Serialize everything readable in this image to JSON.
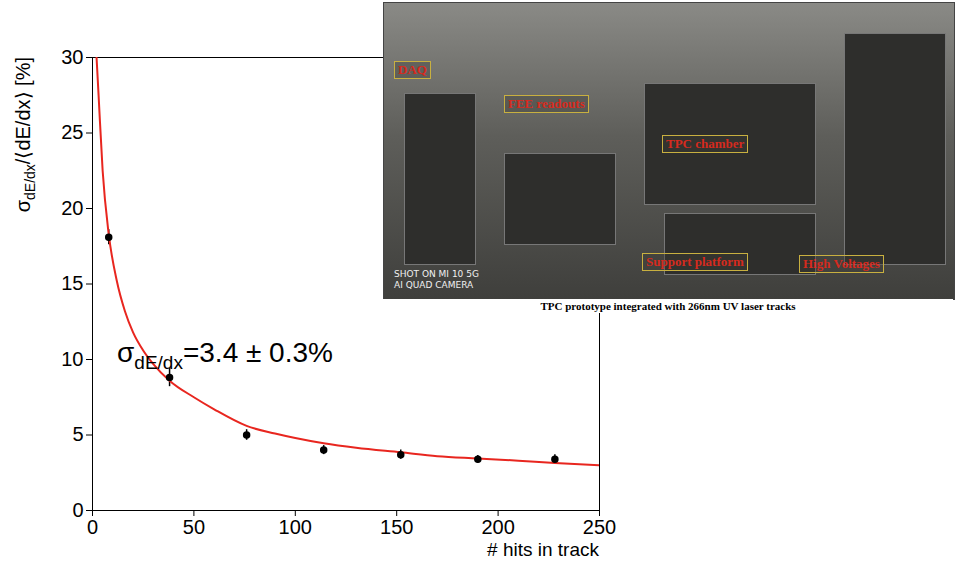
{
  "chart_data": {
    "type": "scatter",
    "x": [
      8,
      38,
      76,
      114,
      152,
      190,
      228
    ],
    "values": [
      18.1,
      8.8,
      5.0,
      4.0,
      3.7,
      3.4,
      3.4
    ],
    "errors": [
      0.5,
      0.6,
      0.35,
      0.3,
      0.3,
      0.25,
      0.3
    ],
    "color": "#000000",
    "marker": "circle",
    "fit": {
      "type": "line",
      "color": "#e8261f",
      "x": [
        2,
        3,
        5,
        8,
        12,
        16,
        20,
        25,
        30,
        38,
        50,
        60,
        76,
        90,
        100,
        114,
        130,
        152,
        170,
        190,
        210,
        228,
        250
      ],
      "values": [
        30,
        27.5,
        22.5,
        18.3,
        15.2,
        13.2,
        11.8,
        10.6,
        9.7,
        8.6,
        7.5,
        6.7,
        5.6,
        5.1,
        4.8,
        4.45,
        4.15,
        3.85,
        3.6,
        3.45,
        3.3,
        3.15,
        3.0
      ]
    },
    "xlabel": "# hits in track",
    "ylabel": {
      "symbol": "σ",
      "subscript": "dE/dx",
      "text": "/⟨dE/dx⟩ [%]"
    },
    "annotation": {
      "symbol": "σ",
      "subscript": "dE/dx",
      "text": "=3.4 ± 0.3%"
    },
    "xlim": [
      0,
      250
    ],
    "ylim": [
      0,
      30
    ],
    "xticks": [
      0,
      50,
      100,
      150,
      200,
      250
    ],
    "yticks": [
      0,
      5,
      10,
      15,
      20,
      25,
      30
    ],
    "grid": false
  },
  "inset": {
    "caption": "TPC prototype integrated with 266nm UV laser tracks",
    "labels": [
      "DAQ",
      "FEE readouts",
      "TPC chamber",
      "Support platform",
      "High Voltages"
    ],
    "watermark": [
      "SHOT ON MI 10 5G",
      "AI QUAD CAMERA"
    ]
  }
}
